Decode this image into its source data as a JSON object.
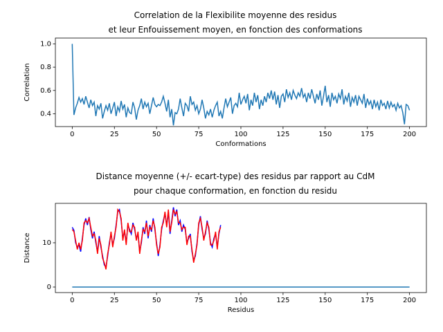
{
  "chart_data": [
    {
      "type": "line",
      "title": "Correlation de la Flexibilite moyenne des residus\net leur Enfouissement moyen, en fonction des conformations",
      "xlabel": "Conformations",
      "ylabel": "Correlation",
      "xlim": [
        -10,
        210
      ],
      "xticks": [
        0,
        25,
        50,
        75,
        100,
        125,
        150,
        175,
        200
      ],
      "ylim": [
        0.29,
        1.05
      ],
      "yticks": [
        0.4,
        0.6,
        0.8,
        {
          "value": 1,
          "label": "1.0"
        }
      ],
      "series": [
        {
          "color": "#1f77b4",
          "x": [
            0,
            1,
            2,
            3,
            4,
            5,
            6,
            7,
            8,
            9,
            10,
            11,
            12,
            13,
            14,
            15,
            16,
            17,
            18,
            19,
            20,
            21,
            22,
            23,
            24,
            25,
            26,
            27,
            28,
            29,
            30,
            31,
            32,
            33,
            34,
            35,
            36,
            37,
            38,
            39,
            40,
            41,
            42,
            43,
            44,
            45,
            46,
            47,
            48,
            49,
            50,
            51,
            52,
            53,
            54,
            55,
            56,
            57,
            58,
            59,
            60,
            61,
            62,
            63,
            64,
            65,
            66,
            67,
            68,
            69,
            70,
            71,
            72,
            73,
            74,
            75,
            76,
            77,
            78,
            79,
            80,
            81,
            82,
            83,
            84,
            85,
            86,
            87,
            88,
            89,
            90,
            91,
            92,
            93,
            94,
            95,
            96,
            97,
            98,
            99,
            100,
            101,
            102,
            103,
            104,
            105,
            106,
            107,
            108,
            109,
            110,
            111,
            112,
            113,
            114,
            115,
            116,
            117,
            118,
            119,
            120,
            121,
            122,
            123,
            124,
            125,
            126,
            127,
            128,
            129,
            130,
            131,
            132,
            133,
            134,
            135,
            136,
            137,
            138,
            139,
            140,
            141,
            142,
            143,
            144,
            145,
            146,
            147,
            148,
            149,
            150,
            151,
            152,
            153,
            154,
            155,
            156,
            157,
            158,
            159,
            160,
            161,
            162,
            163,
            164,
            165,
            166,
            167,
            168,
            169,
            170,
            171,
            172,
            173,
            174,
            175,
            176,
            177,
            178,
            179,
            180,
            181,
            182,
            183,
            184,
            185,
            186,
            187,
            188,
            189,
            190,
            191,
            192,
            193,
            194,
            195,
            196,
            197,
            198,
            199,
            200
          ],
          "values": [
            1.0,
            0.39,
            0.45,
            0.49,
            0.54,
            0.5,
            0.53,
            0.48,
            0.55,
            0.5,
            0.45,
            0.52,
            0.47,
            0.5,
            0.38,
            0.47,
            0.44,
            0.49,
            0.36,
            0.42,
            0.47,
            0.43,
            0.49,
            0.4,
            0.45,
            0.5,
            0.38,
            0.46,
            0.42,
            0.51,
            0.44,
            0.48,
            0.37,
            0.45,
            0.41,
            0.4,
            0.5,
            0.45,
            0.35,
            0.43,
            0.47,
            0.53,
            0.44,
            0.5,
            0.46,
            0.49,
            0.4,
            0.47,
            0.54,
            0.48,
            0.46,
            0.48,
            0.47,
            0.5,
            0.55,
            0.49,
            0.42,
            0.52,
            0.37,
            0.44,
            0.3,
            0.41,
            0.4,
            0.44,
            0.53,
            0.45,
            0.38,
            0.49,
            0.47,
            0.42,
            0.55,
            0.48,
            0.5,
            0.43,
            0.47,
            0.4,
            0.44,
            0.52,
            0.45,
            0.36,
            0.42,
            0.39,
            0.44,
            0.37,
            0.43,
            0.47,
            0.5,
            0.38,
            0.42,
            0.36,
            0.45,
            0.53,
            0.46,
            0.5,
            0.54,
            0.4,
            0.47,
            0.49,
            0.46,
            0.58,
            0.48,
            0.52,
            0.55,
            0.49,
            0.57,
            0.43,
            0.52,
            0.47,
            0.58,
            0.5,
            0.56,
            0.44,
            0.52,
            0.47,
            0.55,
            0.5,
            0.58,
            0.53,
            0.6,
            0.52,
            0.59,
            0.48,
            0.56,
            0.45,
            0.55,
            0.57,
            0.5,
            0.61,
            0.54,
            0.58,
            0.52,
            0.6,
            0.56,
            0.53,
            0.58,
            0.55,
            0.62,
            0.54,
            0.57,
            0.5,
            0.58,
            0.53,
            0.61,
            0.55,
            0.49,
            0.57,
            0.52,
            0.6,
            0.47,
            0.55,
            0.64,
            0.5,
            0.56,
            0.46,
            0.58,
            0.52,
            0.55,
            0.49,
            0.57,
            0.53,
            0.61,
            0.48,
            0.55,
            0.51,
            0.58,
            0.46,
            0.54,
            0.5,
            0.56,
            0.47,
            0.55,
            0.52,
            0.49,
            0.57,
            0.45,
            0.53,
            0.48,
            0.51,
            0.44,
            0.52,
            0.46,
            0.5,
            0.43,
            0.52,
            0.47,
            0.49,
            0.44,
            0.51,
            0.45,
            0.5,
            0.46,
            0.48,
            0.43,
            0.49,
            0.45,
            0.47,
            0.41,
            0.31,
            0.48,
            0.47,
            0.43
          ]
        }
      ]
    },
    {
      "type": "line",
      "title": "Distance moyenne (+/- ecart-type) des residus par rapport au CdM\npour chaque conformation, en fonction du residu",
      "xlabel": "Residus",
      "ylabel": "Distance",
      "xlim": [
        -10,
        210
      ],
      "xticks": [
        0,
        25,
        50,
        75,
        100,
        125,
        150,
        175,
        200
      ],
      "ylim": [
        -1.25,
        18.9
      ],
      "yticks": [
        0,
        10
      ],
      "series": [
        {
          "color": "#0000ff",
          "x": [
            0,
            1,
            2,
            3,
            4,
            5,
            6,
            7,
            8,
            9,
            10,
            11,
            12,
            13,
            14,
            15,
            16,
            17,
            18,
            19,
            20,
            21,
            22,
            23,
            24,
            25,
            26,
            27,
            28,
            29,
            30,
            31,
            32,
            33,
            34,
            35,
            36,
            37,
            38,
            39,
            40,
            41,
            42,
            43,
            44,
            45,
            46,
            47,
            48,
            49,
            50,
            51,
            52,
            53,
            54,
            55,
            56,
            57,
            58,
            59,
            60,
            61,
            62,
            63,
            64,
            65,
            66,
            67,
            68,
            69,
            70,
            71,
            72,
            73,
            74,
            75,
            76,
            77,
            78,
            79,
            80,
            81,
            82,
            83,
            84,
            85,
            86,
            87,
            88
          ],
          "values": [
            13.5,
            12.8,
            10,
            9,
            9.5,
            8,
            11,
            14,
            15.5,
            14,
            15.8,
            13,
            11,
            12.5,
            10,
            8,
            11.5,
            9,
            7,
            5,
            4.5,
            7,
            10,
            12,
            9.5,
            11,
            14,
            17,
            17.5,
            15,
            11,
            12.5,
            10,
            14,
            13,
            12,
            14.5,
            13,
            11,
            12,
            8,
            10,
            13.5,
            12,
            15,
            11,
            14,
            12.5,
            15.5,
            13,
            10,
            7,
            9.5,
            13,
            15,
            16.5,
            14,
            17,
            12,
            15,
            18,
            16,
            17.5,
            14,
            15,
            12.5,
            14,
            13,
            10,
            11,
            12,
            8,
            6,
            7,
            10,
            14,
            16,
            13,
            11,
            12,
            15,
            13,
            10,
            9,
            11,
            12,
            9,
            12,
            14
          ]
        },
        {
          "color": "#ff0000",
          "x": [
            0,
            1,
            2,
            3,
            4,
            5,
            6,
            7,
            8,
            9,
            10,
            11,
            12,
            13,
            14,
            15,
            16,
            17,
            18,
            19,
            20,
            21,
            22,
            23,
            24,
            25,
            26,
            27,
            28,
            29,
            30,
            31,
            32,
            33,
            34,
            35,
            36,
            37,
            38,
            39,
            40,
            41,
            42,
            43,
            44,
            45,
            46,
            47,
            48,
            49,
            50,
            51,
            52,
            53,
            54,
            55,
            56,
            57,
            58,
            59,
            60,
            61,
            62,
            63,
            64,
            65,
            66,
            67,
            68,
            69,
            70,
            71,
            72,
            73,
            74,
            75,
            76,
            77,
            78,
            79,
            80,
            81,
            82,
            83,
            84,
            85,
            86,
            87,
            88
          ],
          "values": [
            13,
            12.5,
            10.5,
            8.5,
            10,
            8.5,
            10.5,
            14.5,
            15,
            14.5,
            15.5,
            13.5,
            11.5,
            12,
            10.5,
            7.5,
            11,
            9.5,
            6.5,
            5.5,
            4,
            7.5,
            9.5,
            12.5,
            9,
            11.5,
            13.5,
            17.5,
            17,
            15.5,
            10.5,
            13,
            9.5,
            14.5,
            12.5,
            12.5,
            14,
            13.5,
            10.5,
            12.5,
            7.5,
            10.5,
            13,
            12.5,
            14.5,
            11.5,
            13.5,
            13,
            15,
            13.5,
            9.5,
            7.5,
            9,
            13.5,
            14.5,
            17,
            13.5,
            17.5,
            12.5,
            14.5,
            17.5,
            16.5,
            17,
            14.5,
            14.5,
            13,
            13.5,
            13.5,
            9.5,
            11.5,
            11.5,
            8.5,
            5.5,
            7.5,
            9.5,
            14.5,
            15.5,
            13.5,
            10.5,
            12.5,
            14.5,
            13.5,
            9.5,
            9.5,
            10.5,
            12.5,
            8.5,
            12.5,
            13.5
          ]
        },
        {
          "color": "#1f77b4",
          "x": [
            0,
            200
          ],
          "values": [
            0,
            0
          ]
        }
      ]
    }
  ]
}
